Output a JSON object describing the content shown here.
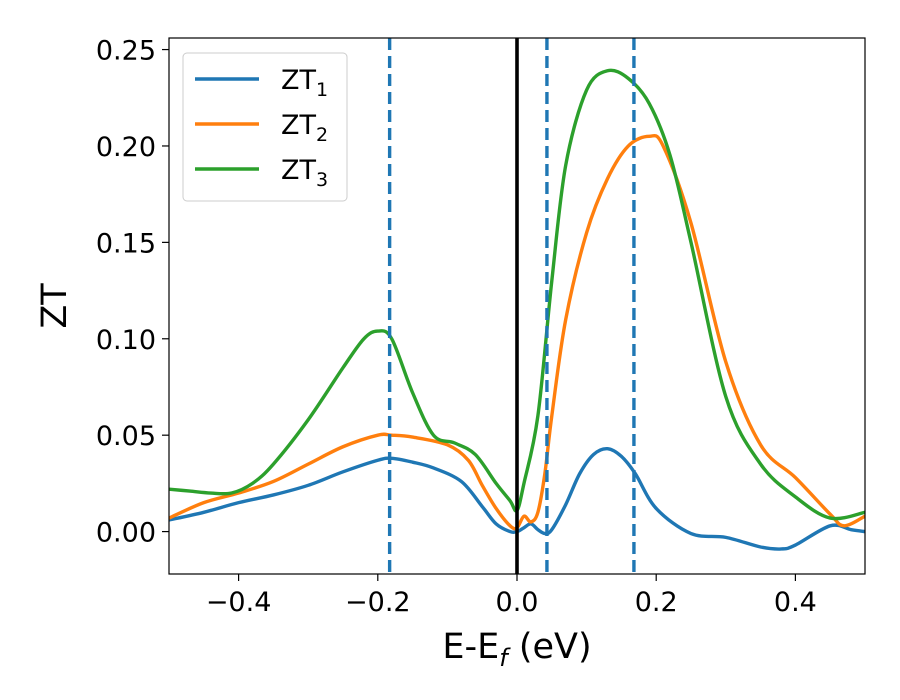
{
  "chart_data": {
    "type": "line",
    "title": "",
    "xlabel": {
      "main": "E-E",
      "sub": "f",
      "suffix": " (eV)"
    },
    "ylabel": "ZT",
    "xlim": [
      -0.5,
      0.5
    ],
    "ylim": [
      -0.022,
      0.256
    ],
    "xticks": [
      -0.4,
      -0.2,
      0.0,
      0.2,
      0.4
    ],
    "xtick_labels": [
      "−0.4",
      "−0.2",
      "0.0",
      "0.2",
      "0.4"
    ],
    "yticks": [
      0.0,
      0.05,
      0.1,
      0.15,
      0.2,
      0.25
    ],
    "ytick_labels": [
      "0.00",
      "0.05",
      "0.10",
      "0.15",
      "0.20",
      "0.25"
    ],
    "grid": false,
    "legend_position": "upper-left",
    "vertical_lines": [
      {
        "x": 0.0,
        "style": "solid",
        "color": "#000000"
      },
      {
        "x": -0.183,
        "style": "dashed",
        "color": "#1f77b4"
      },
      {
        "x": 0.043,
        "style": "dashed",
        "color": "#1f77b4"
      },
      {
        "x": 0.168,
        "style": "dashed",
        "color": "#1f77b4"
      }
    ],
    "series": [
      {
        "name": "ZT",
        "name_sub": "1",
        "color": "#1f77b4",
        "x": [
          -0.5,
          -0.45,
          -0.4,
          -0.35,
          -0.3,
          -0.25,
          -0.2,
          -0.18,
          -0.15,
          -0.12,
          -0.08,
          -0.05,
          -0.03,
          -0.01,
          0.0,
          0.01,
          0.02,
          0.03,
          0.04,
          0.05,
          0.07,
          0.09,
          0.11,
          0.13,
          0.15,
          0.17,
          0.2,
          0.25,
          0.3,
          0.35,
          0.38,
          0.4,
          0.45,
          0.48,
          0.5
        ],
        "y": [
          0.006,
          0.01,
          0.015,
          0.019,
          0.024,
          0.031,
          0.037,
          0.038,
          0.036,
          0.033,
          0.026,
          0.013,
          0.004,
          0.0,
          0.0,
          0.002,
          0.004,
          0.001,
          -0.001,
          0.001,
          0.014,
          0.03,
          0.04,
          0.043,
          0.039,
          0.03,
          0.012,
          -0.001,
          -0.003,
          -0.008,
          -0.009,
          -0.007,
          0.003,
          0.001,
          0.0
        ]
      },
      {
        "name": "ZT",
        "name_sub": "2",
        "color": "#ff7f0e",
        "x": [
          -0.5,
          -0.45,
          -0.4,
          -0.35,
          -0.3,
          -0.25,
          -0.2,
          -0.18,
          -0.15,
          -0.1,
          -0.07,
          -0.05,
          -0.03,
          -0.01,
          0.0,
          0.01,
          0.02,
          0.03,
          0.04,
          0.05,
          0.07,
          0.1,
          0.13,
          0.16,
          0.19,
          0.21,
          0.25,
          0.3,
          0.35,
          0.4,
          0.45,
          0.47,
          0.5
        ],
        "y": [
          0.007,
          0.015,
          0.02,
          0.026,
          0.035,
          0.044,
          0.05,
          0.05,
          0.049,
          0.045,
          0.037,
          0.024,
          0.012,
          0.003,
          0.002,
          0.008,
          0.005,
          0.01,
          0.03,
          0.06,
          0.11,
          0.155,
          0.183,
          0.2,
          0.205,
          0.2,
          0.16,
          0.088,
          0.045,
          0.028,
          0.009,
          0.003,
          0.008
        ]
      },
      {
        "name": "ZT",
        "name_sub": "3",
        "color": "#2ca02c",
        "x": [
          -0.5,
          -0.47,
          -0.44,
          -0.41,
          -0.38,
          -0.35,
          -0.3,
          -0.25,
          -0.22,
          -0.2,
          -0.18,
          -0.15,
          -0.12,
          -0.09,
          -0.06,
          -0.03,
          -0.01,
          0.0,
          0.01,
          0.03,
          0.05,
          0.07,
          0.1,
          0.13,
          0.16,
          0.19,
          0.22,
          0.25,
          0.3,
          0.35,
          0.4,
          0.45,
          0.5
        ],
        "y": [
          0.022,
          0.021,
          0.02,
          0.02,
          0.025,
          0.035,
          0.058,
          0.085,
          0.1,
          0.104,
          0.1,
          0.072,
          0.05,
          0.046,
          0.04,
          0.025,
          0.016,
          0.011,
          0.025,
          0.06,
          0.13,
          0.19,
          0.229,
          0.239,
          0.235,
          0.222,
          0.195,
          0.15,
          0.07,
          0.035,
          0.018,
          0.007,
          0.01
        ]
      }
    ]
  }
}
